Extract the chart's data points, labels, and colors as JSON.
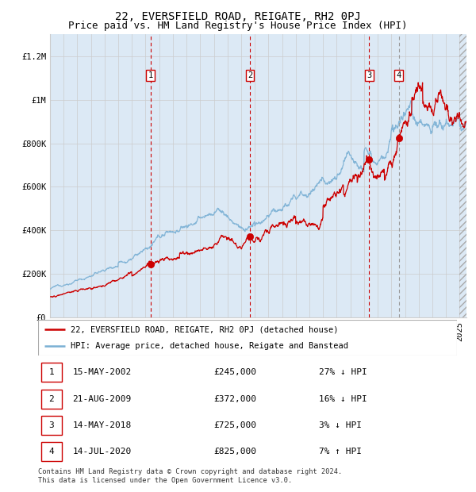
{
  "title": "22, EVERSFIELD ROAD, REIGATE, RH2 0PJ",
  "subtitle": "Price paid vs. HM Land Registry's House Price Index (HPI)",
  "legend_address": "22, EVERSFIELD ROAD, REIGATE, RH2 0PJ (detached house)",
  "legend_hpi": "HPI: Average price, detached house, Reigate and Banstead",
  "footer": "Contains HM Land Registry data © Crown copyright and database right 2024.\nThis data is licensed under the Open Government Licence v3.0.",
  "transactions": [
    {
      "num": 1,
      "date": "15-MAY-2002",
      "price": 245000,
      "hpi_rel": "27% ↓ HPI",
      "x_year": 2002.37
    },
    {
      "num": 2,
      "date": "21-AUG-2009",
      "price": 372000,
      "hpi_rel": "16% ↓ HPI",
      "x_year": 2009.64
    },
    {
      "num": 3,
      "date": "14-MAY-2018",
      "price": 725000,
      "hpi_rel": "3% ↓ HPI",
      "x_year": 2018.37
    },
    {
      "num": 4,
      "date": "14-JUL-2020",
      "price": 825000,
      "hpi_rel": "7% ↑ HPI",
      "x_year": 2020.54
    }
  ],
  "ylim": [
    0,
    1300000
  ],
  "xlim_start": 1995.0,
  "xlim_end": 2025.5,
  "bg_color": "#dce9f5",
  "plot_bg": "#ffffff",
  "red_color": "#cc0000",
  "blue_color": "#7ab0d4",
  "grid_color": "#cccccc",
  "title_fontsize": 10,
  "subtitle_fontsize": 9,
  "tick_fontsize": 7.5,
  "label_fontsize": 8,
  "ytick_labels": [
    "£0",
    "£200K",
    "£400K",
    "£600K",
    "£800K",
    "£1M",
    "£1.2M"
  ],
  "ytick_values": [
    0,
    200000,
    400000,
    600000,
    800000,
    1000000,
    1200000
  ],
  "hatch_start": 2025.0,
  "vline_colors": [
    "#cc0000",
    "#cc0000",
    "#cc0000",
    "#999999"
  ]
}
